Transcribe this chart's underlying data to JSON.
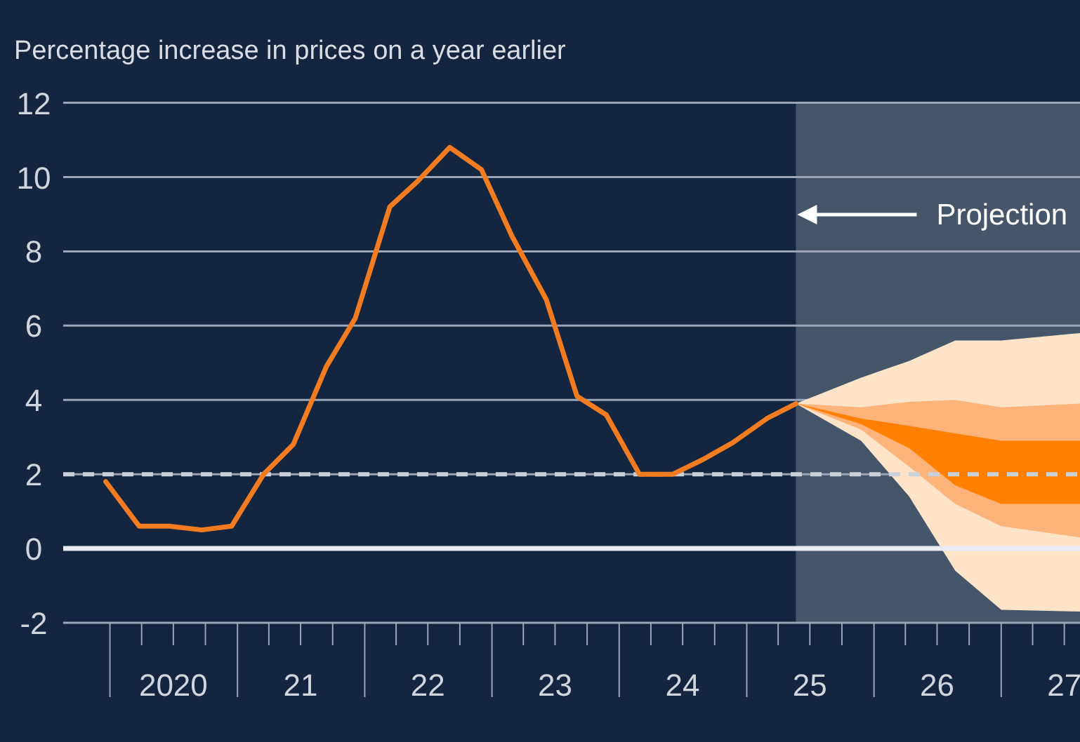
{
  "chart_data": {
    "type": "line",
    "ylabel": "Percentage increase in prices on a year earlier",
    "xlim": [
      "2019-08-20",
      "2027-08-15"
    ],
    "xticks": [
      {
        "value": "2020-01-01",
        "label": null
      },
      {
        "value": "2020-04-01",
        "label": null
      },
      {
        "value": "2020-07-01",
        "label": "2020"
      },
      {
        "value": "2020-10-01",
        "label": null
      },
      {
        "value": "2021-01-01",
        "label": null
      },
      {
        "value": "2021-04-01",
        "label": null
      },
      {
        "value": "2021-07-01",
        "label": "21"
      },
      {
        "value": "2021-10-01",
        "label": null
      },
      {
        "value": "2022-01-01",
        "label": null
      },
      {
        "value": "2022-04-01",
        "label": null
      },
      {
        "value": "2022-07-01",
        "label": "22"
      },
      {
        "value": "2022-10-01",
        "label": null
      },
      {
        "value": "2023-01-01",
        "label": null
      },
      {
        "value": "2023-04-01",
        "label": null
      },
      {
        "value": "2023-07-01",
        "label": "23"
      },
      {
        "value": "2023-10-01",
        "label": null
      },
      {
        "value": "2024-01-01",
        "label": null
      },
      {
        "value": "2024-04-01",
        "label": null
      },
      {
        "value": "2024-07-01",
        "label": "24"
      },
      {
        "value": "2024-10-01",
        "label": null
      },
      {
        "value": "2025-01-01",
        "label": null
      },
      {
        "value": "2025-04-01",
        "label": null
      },
      {
        "value": "2025-07-01",
        "label": "25"
      },
      {
        "value": "2025-10-01",
        "label": null
      },
      {
        "value": "2026-01-01",
        "label": null
      },
      {
        "value": "2026-04-01",
        "label": null
      },
      {
        "value": "2026-07-01",
        "label": "26"
      },
      {
        "value": "2026-10-01",
        "label": null
      },
      {
        "value": "2027-01-01",
        "label": null
      },
      {
        "value": "2027-04-01",
        "label": null
      },
      {
        "value": "2027-07-01",
        "label": "27"
      }
    ],
    "ylim": [
      -2,
      12
    ],
    "yticks": [
      -2,
      0,
      2,
      4,
      6,
      8,
      10,
      12
    ],
    "grid": "y",
    "bands": [
      {
        "axis": "x",
        "from": "2025-05-22",
        "to": "2027-08-15",
        "label": "Projection",
        "color": "#45556a"
      }
    ],
    "ref_lines": [
      {
        "axis": "y",
        "value": 2,
        "line_style": "dashed",
        "color": "#c9d0da"
      },
      {
        "axis": "y",
        "value": 0,
        "line_style": "solid",
        "color": "#e8ecf2"
      }
    ],
    "series": [
      {
        "type": "area",
        "color": "#fde3c8",
        "x": [
          "2025-05-22",
          "2025-11-25",
          "2026-04-12",
          "2026-08-22",
          "2027-01-01",
          "2027-08-15"
        ],
        "values": [
          null,
          null,
          null,
          null,
          null,
          null
        ],
        "lower": [
          3.9,
          2.9,
          1.4,
          -0.6,
          -1.65,
          -1.7
        ],
        "upper": [
          3.9,
          4.6,
          5.05,
          5.6,
          5.6,
          5.8
        ]
      },
      {
        "type": "area",
        "color": "#fdb37a",
        "x": [
          "2025-05-22",
          "2025-11-25",
          "2026-04-12",
          "2026-08-22",
          "2027-01-01",
          "2027-08-15"
        ],
        "values": [
          null,
          null,
          null,
          null,
          null,
          null
        ],
        "lower": [
          3.9,
          3.2,
          2.2,
          1.2,
          0.6,
          0.3
        ],
        "upper": [
          3.9,
          3.8,
          3.95,
          4.0,
          3.8,
          3.9
        ]
      },
      {
        "type": "area",
        "color": "#ff7f00",
        "x": [
          "2025-05-22",
          "2025-11-25",
          "2026-04-12",
          "2026-08-22",
          "2027-01-01",
          "2027-08-15"
        ],
        "values": [
          null,
          null,
          null,
          null,
          null,
          null
        ],
        "lower": [
          3.9,
          3.35,
          2.7,
          1.7,
          1.2,
          1.2
        ],
        "upper": [
          3.9,
          3.5,
          3.3,
          3.1,
          2.9,
          2.9
        ]
      },
      {
        "color": "#f47c20",
        "x": [
          "2019-12-20",
          "2020-03-25",
          "2020-06-20",
          "2020-09-20",
          "2020-12-15",
          "2021-03-17",
          "2021-06-10",
          "2021-09-13",
          "2021-12-05",
          "2022-03-14",
          "2022-06-03",
          "2022-09-02",
          "2022-12-02",
          "2023-02-28",
          "2023-06-06",
          "2023-09-02",
          "2023-11-25",
          "2024-02-28",
          "2024-06-03",
          "2024-08-29",
          "2024-11-22",
          "2025-02-28",
          "2025-05-22"
        ],
        "values": [
          1.8,
          0.6,
          0.6,
          0.5,
          0.6,
          2.0,
          2.8,
          4.9,
          6.2,
          9.2,
          9.9,
          10.8,
          10.2,
          8.4,
          6.7,
          4.1,
          3.6,
          2.0,
          2.0,
          2.4,
          2.85,
          3.5,
          3.9
        ]
      }
    ]
  }
}
